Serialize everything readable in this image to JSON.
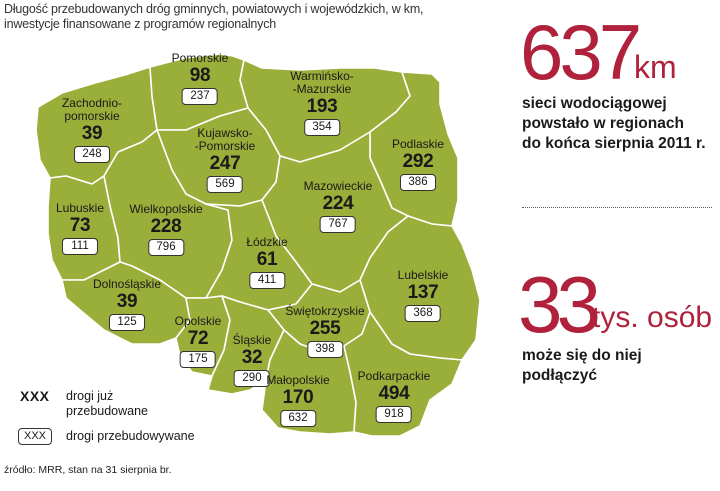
{
  "caption": {
    "line1": "Długość przebudowanych dróg gminnych, powiatowych i wojewódzkich, w km,",
    "line2": "inwestycje finansowane z programów regionalnych"
  },
  "colors": {
    "region_fill": "#9aae3a",
    "region_border": "#ffffff",
    "accent": "#b0223b"
  },
  "regions": [
    {
      "id": "pomorskie",
      "name_lines": [
        "Pomorskie"
      ],
      "rebuilt": "98",
      "in_progress": "237"
    },
    {
      "id": "zachodniopomorskie",
      "name_lines": [
        "Zachodnio-",
        "pomorskie"
      ],
      "rebuilt": "39",
      "in_progress": "248"
    },
    {
      "id": "warminsko-mazurskie",
      "name_lines": [
        "Warmińsko-",
        "-Mazurskie"
      ],
      "rebuilt": "193",
      "in_progress": "354"
    },
    {
      "id": "kujawsko-pomorskie",
      "name_lines": [
        "Kujawsko-",
        "-Pomorskie"
      ],
      "rebuilt": "247",
      "in_progress": "569"
    },
    {
      "id": "podlaskie",
      "name_lines": [
        "Podlaskie"
      ],
      "rebuilt": "292",
      "in_progress": "386"
    },
    {
      "id": "lubuskie",
      "name_lines": [
        "Lubuskie"
      ],
      "rebuilt": "73",
      "in_progress": "111"
    },
    {
      "id": "wielkopolskie",
      "name_lines": [
        "Wielkopolskie"
      ],
      "rebuilt": "228",
      "in_progress": "796"
    },
    {
      "id": "mazowieckie",
      "name_lines": [
        "Mazowieckie"
      ],
      "rebuilt": "224",
      "in_progress": "767"
    },
    {
      "id": "lodzkie",
      "name_lines": [
        "Łódzkie"
      ],
      "rebuilt": "61",
      "in_progress": "411"
    },
    {
      "id": "dolnoslaskie",
      "name_lines": [
        "Dolnośląskie"
      ],
      "rebuilt": "39",
      "in_progress": "125"
    },
    {
      "id": "lubelskie",
      "name_lines": [
        "Lubelskie"
      ],
      "rebuilt": "137",
      "in_progress": "368"
    },
    {
      "id": "opolskie",
      "name_lines": [
        "Opolskie"
      ],
      "rebuilt": "72",
      "in_progress": "175"
    },
    {
      "id": "swietokrzyskie",
      "name_lines": [
        "Świętokrzyskie"
      ],
      "rebuilt": "255",
      "in_progress": "398"
    },
    {
      "id": "slaskie",
      "name_lines": [
        "Śląskie"
      ],
      "rebuilt": "32",
      "in_progress": "290"
    },
    {
      "id": "malopolskie",
      "name_lines": [
        "Małopolskie"
      ],
      "rebuilt": "170",
      "in_progress": "632"
    },
    {
      "id": "podkarpackie",
      "name_lines": [
        "Podkarpackie"
      ],
      "rebuilt": "494",
      "in_progress": "918"
    }
  ],
  "stat1": {
    "number": "637",
    "unit": "km",
    "text_lines": [
      "sieci wodociągowej",
      "powstało w regionach",
      "do końca sierpnia 2011 r."
    ]
  },
  "stat2": {
    "number": "33",
    "unit": "tys. osób",
    "text_lines": [
      "może się do niej",
      "podłączyć"
    ]
  },
  "legend": {
    "bold_marker": "XXX",
    "bold_label_lines": [
      "drogi już",
      "przebudowane"
    ],
    "box_marker": "XXX",
    "box_label": "drogi przebudowywane"
  },
  "source": "źródło: MRR, stan na 31 sierpnia br."
}
